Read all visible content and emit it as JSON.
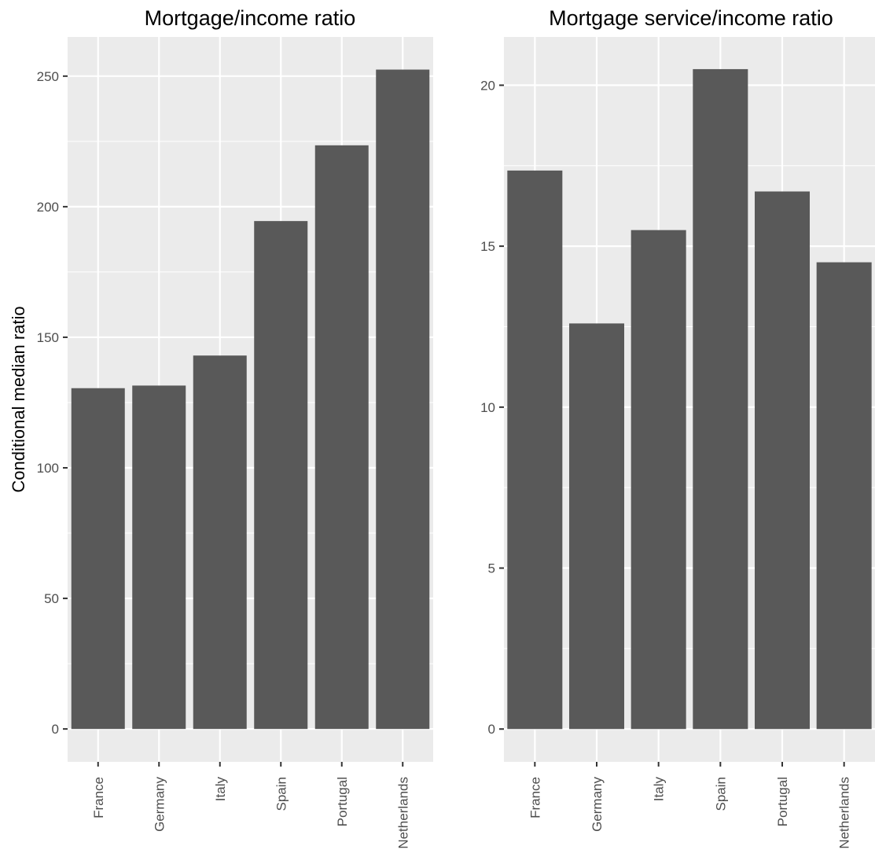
{
  "chart_data": [
    {
      "type": "bar",
      "title": "Mortgage/income ratio",
      "xlabel": "",
      "ylabel": "Conditional median ratio",
      "categories": [
        "France",
        "Germany",
        "Italy",
        "Spain",
        "Portugal",
        "Netherlands"
      ],
      "values": [
        130.5,
        131.5,
        143,
        194.5,
        223.5,
        252.5
      ],
      "ylim": [
        -12.6,
        265
      ],
      "yticks": [
        0,
        50,
        100,
        150,
        200,
        250
      ],
      "grid": true,
      "panel_background": "#ebebeb",
      "bar_color": "#595959"
    },
    {
      "type": "bar",
      "title": "Mortgage service/income ratio",
      "xlabel": "",
      "ylabel": "",
      "categories": [
        "France",
        "Germany",
        "Italy",
        "Spain",
        "Portugal",
        "Netherlands"
      ],
      "values": [
        17.35,
        12.6,
        15.5,
        20.5,
        16.7,
        14.5
      ],
      "ylim": [
        -1.02,
        21.5
      ],
      "yticks": [
        0,
        5,
        10,
        15,
        20
      ],
      "grid": true,
      "panel_background": "#ebebeb",
      "bar_color": "#595959"
    }
  ]
}
